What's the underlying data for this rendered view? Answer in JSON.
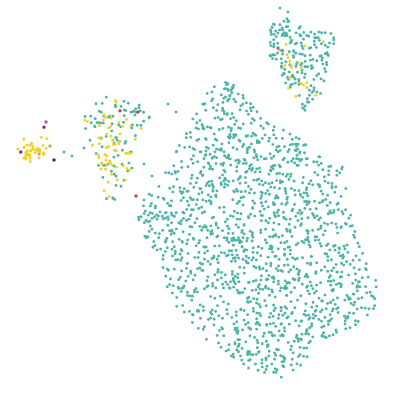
{
  "chart_data": {
    "type": "scatter",
    "title": "",
    "xlabel": "",
    "ylabel": "",
    "axes_visible": false,
    "grid": false,
    "xlim": [
      0,
      100
    ],
    "ylim": [
      0,
      100
    ],
    "colors": {
      "main": "#4eb3a8",
      "yellow": "#f2d022",
      "purple": "#7a2a87",
      "magenta": "#b84aa8",
      "red": "#c8442d",
      "dark": "#3a1f5c",
      "tan": "#c9a27c"
    },
    "clusters": [
      {
        "name": "",
        "color": "#4eb3a8",
        "count": 1500,
        "shape": "main-body",
        "center": [
          62,
          40
        ]
      },
      {
        "name": "",
        "color": "#4eb3a8",
        "count": 180,
        "shape": "top-right-lobe",
        "center": [
          75,
          82
        ]
      },
      {
        "name": "",
        "color": "#4eb3a8",
        "count": 90,
        "shape": "mid-left-arm",
        "center": [
          28,
          60
        ]
      },
      {
        "name": "",
        "color": "#f2d022",
        "count": 60,
        "shape": "mid-left-arm",
        "center": [
          28,
          62
        ]
      },
      {
        "name": "",
        "color": "#f2d022",
        "count": 40,
        "shape": "far-left-blob",
        "center": [
          8,
          62
        ]
      },
      {
        "name": "",
        "color": "#f2d022",
        "count": 20,
        "shape": "top-right-lobe",
        "center": [
          73,
          83
        ]
      }
    ],
    "accent_points": [
      {
        "x": 11.5,
        "y": 69.5,
        "color": "#b84aa8"
      },
      {
        "x": 11.0,
        "y": 68.2,
        "color": "#7a2a87"
      },
      {
        "x": 5.2,
        "y": 62.0,
        "color": "#7a2a87"
      },
      {
        "x": 13.5,
        "y": 60.0,
        "color": "#3a1f5c"
      },
      {
        "x": 12.5,
        "y": 63.5,
        "color": "#c9a27c"
      },
      {
        "x": 9.8,
        "y": 61.5,
        "color": "#c9a27c"
      },
      {
        "x": 30.0,
        "y": 72.3,
        "color": "#c8442d"
      },
      {
        "x": 34.5,
        "y": 72.0,
        "color": "#c8442d"
      },
      {
        "x": 34.0,
        "y": 51.0,
        "color": "#c8442d"
      },
      {
        "x": 69.5,
        "y": 88.0,
        "color": "#b84aa8"
      }
    ]
  }
}
